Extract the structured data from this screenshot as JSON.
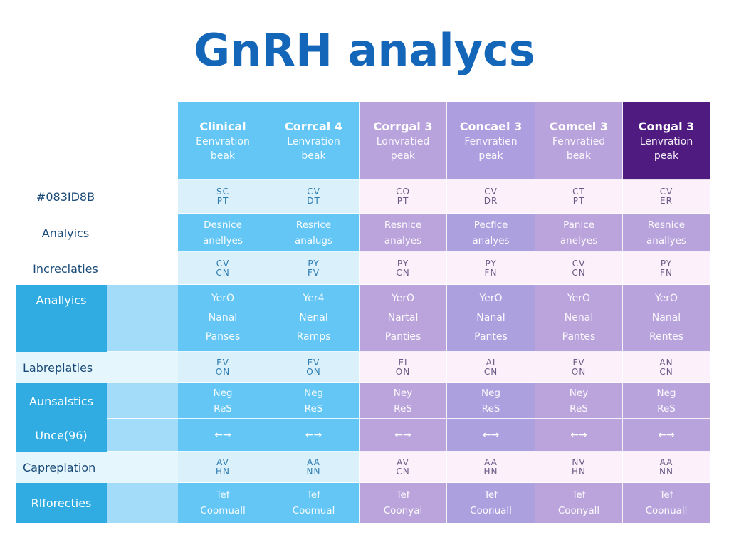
{
  "title": "GnRH analycs",
  "colors": {
    "title": "#1466b8",
    "blue_header": "#63c6f5",
    "light_blue_row": "#daf1fc",
    "purple_header": "#b9a3dc",
    "purple_header_alt": "#ad9fdf",
    "dark_purple_header": "#4f1b80",
    "light_pink_row": "#fcf0fa",
    "label_dark_blue": "#30ace3",
    "label_mid_blue": "#a3dcf9"
  },
  "chart_data": {
    "type": "table",
    "title": "GnRH analycs",
    "columns": [
      {
        "name": "Clinical",
        "sub1": "Eenvration",
        "sub2": "beak"
      },
      {
        "name": "Corrcal 4",
        "sub1": "Lenvration",
        "sub2": "beak"
      },
      {
        "name": "Corrgal 3",
        "sub1": "Lonvratied",
        "sub2": "peak"
      },
      {
        "name": "Concael 3",
        "sub1": "Fenvratien",
        "sub2": "peak"
      },
      {
        "name": "Comcel 3",
        "sub1": "Fenvratied",
        "sub2": "beak"
      },
      {
        "name": "Congal 3",
        "sub1": "Lenvration",
        "sub2": "peak"
      }
    ],
    "rows": [
      {
        "label": "#083ID8B",
        "type": "code",
        "cells": [
          [
            "SC",
            "PT"
          ],
          [
            "CV",
            "DT"
          ],
          [
            "CO",
            "PT"
          ],
          [
            "CV",
            "DR"
          ],
          [
            "CT",
            "PT"
          ],
          [
            "CV",
            "ER"
          ]
        ]
      },
      {
        "label": "Analyics",
        "type": "band",
        "cells": [
          [
            "Desnice",
            "anellyes"
          ],
          [
            "Resrice",
            "analugs"
          ],
          [
            "Resnice",
            "analyes"
          ],
          [
            "Pecfice",
            "analyes"
          ],
          [
            "Panice",
            "anelyes"
          ],
          [
            "Resnice",
            "anallyes"
          ]
        ]
      },
      {
        "label": "Increclaties",
        "type": "code",
        "cells": [
          [
            "CV",
            "CN"
          ],
          [
            "PY",
            "FV"
          ],
          [
            "PY",
            "CN"
          ],
          [
            "PY",
            "FN"
          ],
          [
            "CV",
            "CN"
          ],
          [
            "PY",
            "FN"
          ]
        ]
      },
      {
        "label": "Anallyics",
        "type": "band3",
        "cells": [
          [
            "YerO",
            "Nanal",
            "Panses"
          ],
          [
            "Yer4",
            "Nenal",
            "Ramps"
          ],
          [
            "YerO",
            "Nartal",
            "Panties"
          ],
          [
            "YerO",
            "Nanal",
            "Pantes"
          ],
          [
            "YerO",
            "Nenal",
            "Pantes"
          ],
          [
            "YerO",
            "Nanal",
            "Rentes"
          ]
        ]
      },
      {
        "label": "Labreplaties",
        "type": "code",
        "cells": [
          [
            "EV",
            "ON"
          ],
          [
            "EV",
            "ON"
          ],
          [
            "EI",
            "ON"
          ],
          [
            "AI",
            "CN"
          ],
          [
            "FV",
            "ON"
          ],
          [
            "AN",
            "CN"
          ]
        ]
      },
      {
        "label": "Aunsalstics",
        "type": "band",
        "cells": [
          [
            "Neg",
            "ReS"
          ],
          [
            "Neg",
            "ReS"
          ],
          [
            "Ney",
            "ReS"
          ],
          [
            "Neg",
            "ReS"
          ],
          [
            "Ney",
            "ReS"
          ],
          [
            "Neg",
            "ReS"
          ]
        ]
      },
      {
        "label": "Unce(96)",
        "type": "arrow",
        "cells": [
          [
            "←→"
          ],
          [
            "←→"
          ],
          [
            "←→"
          ],
          [
            "←→"
          ],
          [
            "←→"
          ],
          [
            "←→"
          ]
        ]
      },
      {
        "label": "Capreplation",
        "type": "code",
        "cells": [
          [
            "AV",
            "HN"
          ],
          [
            "AA",
            "NN"
          ],
          [
            "AV",
            "CN"
          ],
          [
            "AA",
            "HN"
          ],
          [
            "NV",
            "HN"
          ],
          [
            "AA",
            "NN"
          ]
        ]
      },
      {
        "label": "Rlforecties",
        "type": "band",
        "cells": [
          [
            "Tef",
            "Coomuall"
          ],
          [
            "Tef",
            "Coomual"
          ],
          [
            "Tef",
            "Coonyal"
          ],
          [
            "Tef",
            "Coonuall"
          ],
          [
            "Tef",
            "Coonyall"
          ],
          [
            "Tef",
            "Coonuall"
          ]
        ]
      }
    ]
  }
}
